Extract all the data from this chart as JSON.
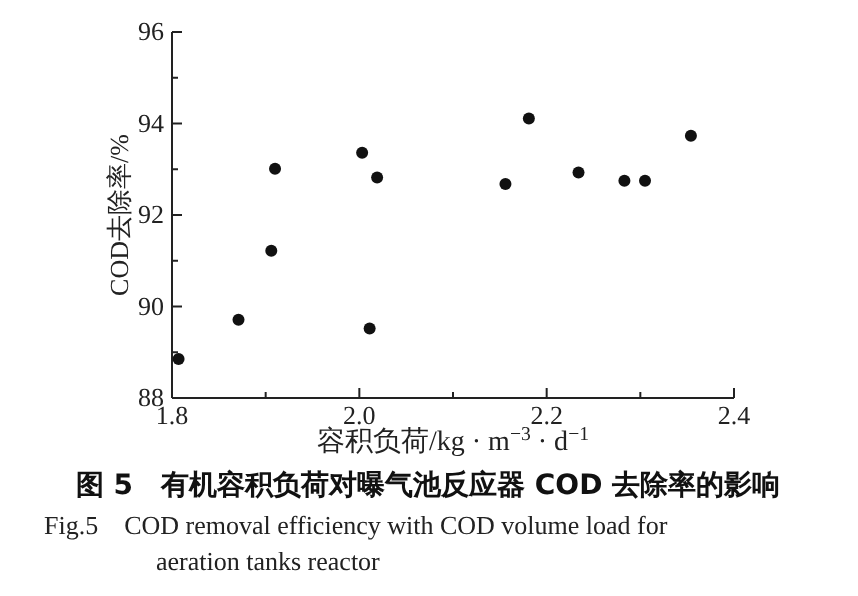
{
  "chart_data": {
    "type": "scatter",
    "title": "图 5　有机容积负荷对曝气池反应器 COD 去除率的影响",
    "subtitle": "Fig.5　COD removal efficiency with COD volume load for aeration tanks reactor",
    "xlabel": "容积负荷/kg · m$^{−3}$ · d$^{−1}$",
    "ylabel": "COD去除率/%",
    "x": [
      1.807,
      1.871,
      1.906,
      1.91,
      2.003,
      2.011,
      2.019,
      2.156,
      2.181,
      2.234,
      2.283,
      2.305,
      2.354
    ],
    "series": [
      {
        "color": "#111111",
        "values": [
          88.85,
          89.71,
          91.22,
          93.01,
          93.36,
          89.52,
          92.82,
          92.68,
          94.11,
          92.93,
          92.75,
          92.75,
          93.73
        ]
      }
    ],
    "xlim": [
      1.8,
      2.4
    ],
    "xticks": [
      1.8,
      {
        "value": 1.9,
        "label": null
      },
      {
        "value": 2.0,
        "label": "2.0"
      },
      {
        "value": 2.1,
        "label": null
      },
      2.2,
      {
        "value": 2.3,
        "label": null
      },
      2.4
    ],
    "ylim": [
      88,
      96
    ],
    "yticks": [
      88,
      {
        "value": 89,
        "label": null
      },
      90,
      {
        "value": 91,
        "label": null
      },
      92,
      {
        "value": 93,
        "label": null
      },
      94,
      {
        "value": 95,
        "label": null
      },
      96
    ],
    "marker": "circle"
  }
}
